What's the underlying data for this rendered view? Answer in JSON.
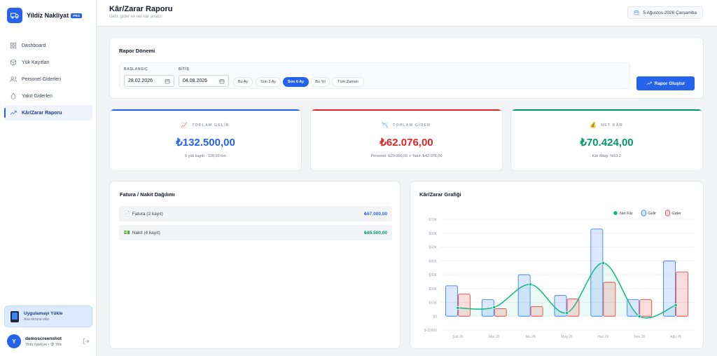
{
  "app": {
    "name": "Yildiz Nakliyat",
    "badge": "PRO"
  },
  "sidebar": {
    "items": [
      {
        "label": "Dashboard",
        "icon": "grid-icon"
      },
      {
        "label": "Yük Kayıtları",
        "icon": "box-icon"
      },
      {
        "label": "Personel Giderleri",
        "icon": "users-icon"
      },
      {
        "label": "Yakıt Giderleri",
        "icon": "drop-icon"
      },
      {
        "label": "Kâr/Zarar Raporu",
        "icon": "trend-icon",
        "active": true
      }
    ],
    "install": {
      "title": "Uygulamayı Yükle",
      "subtitle": "Ana ekrana ekle"
    },
    "user": {
      "initial": "Y",
      "name": "demoscreenshot",
      "subtitle": "Yildiz Nakliyat • 🛡️ Yilik"
    }
  },
  "header": {
    "title": "Kâr/Zarar Raporu",
    "subtitle": "Gelir, gider ve net kâr analizi",
    "date": "5 Ağustos 2026 Çarşamba"
  },
  "period": {
    "title": "Rapor Dönemi",
    "start_label": "BAŞLANGIÇ",
    "start_value": "28.02.2026",
    "end_label": "BİTİŞ",
    "end_value": "04.08.2026",
    "presets": [
      {
        "label": "Bu Ay",
        "active": false
      },
      {
        "label": "Son 3 Ay",
        "active": false
      },
      {
        "label": "Son 6 Ay",
        "active": true
      },
      {
        "label": "Bu Yıl",
        "active": false
      },
      {
        "label": "Tüm Zaman",
        "active": false
      }
    ],
    "button": "Rapor Oluştur"
  },
  "stats": [
    {
      "label": "TOPLAM GELİR",
      "icon": "📈",
      "value": "₺132.500,00",
      "sub": "6 yük kaydı · 128,00 ton",
      "color": "#2563eb"
    },
    {
      "label": "TOPLAM GİDER",
      "icon": "📉",
      "value": "₺62.076,00",
      "sub": "Personel: ₺20.000,00 + Yakıt: ₺42.076,00",
      "color": "#dc2626"
    },
    {
      "label": "NET KÂR",
      "icon": "💰",
      "value": "₺70.424,00",
      "sub": "Kâr Marjı: %53.2",
      "color": "#059669"
    }
  ],
  "distribution": {
    "title": "Fatura / Nakit Dağılımı",
    "rows": [
      {
        "icon": "📄",
        "label": "Fatura (2 kayıt)",
        "amount": "₺67.000,00",
        "color": "#2563eb"
      },
      {
        "icon": "💵",
        "label": "Nakit (4 kayıt)",
        "amount": "₺65.500,00",
        "color": "#059669"
      }
    ]
  },
  "chart_data": {
    "type": "bar",
    "title": "Kâr/Zarar Grafiği",
    "categories": [
      "Şub 26",
      "Mar 26",
      "Nis 26",
      "May 26",
      "Haz 26",
      "Tem 26",
      "Ağu 26"
    ],
    "series": [
      {
        "name": "Gelir",
        "type": "bar",
        "color": "#3b82f6",
        "values": [
          22000,
          12000,
          30000,
          15000,
          63000,
          12000,
          40000
        ]
      },
      {
        "name": "Gider",
        "type": "bar",
        "color": "#ef4444",
        "values": [
          16000,
          5500,
          7000,
          12500,
          24500,
          12000,
          32000
        ]
      },
      {
        "name": "Net Kâr",
        "type": "line",
        "color": "#10b981",
        "values": [
          6000,
          6500,
          23000,
          2500,
          38500,
          0,
          8000
        ]
      }
    ],
    "ylim": [
      -10000,
      70000
    ],
    "yticks": [
      -10000,
      0,
      10000,
      20000,
      30000,
      40000,
      50000,
      60000,
      70000
    ],
    "ytick_labels": [
      "$-10000",
      "$0",
      "$10K",
      "$20K",
      "$30K",
      "$40K",
      "$50K",
      "$60K",
      "$70K"
    ],
    "legend_position": "top-right",
    "grid": true
  }
}
